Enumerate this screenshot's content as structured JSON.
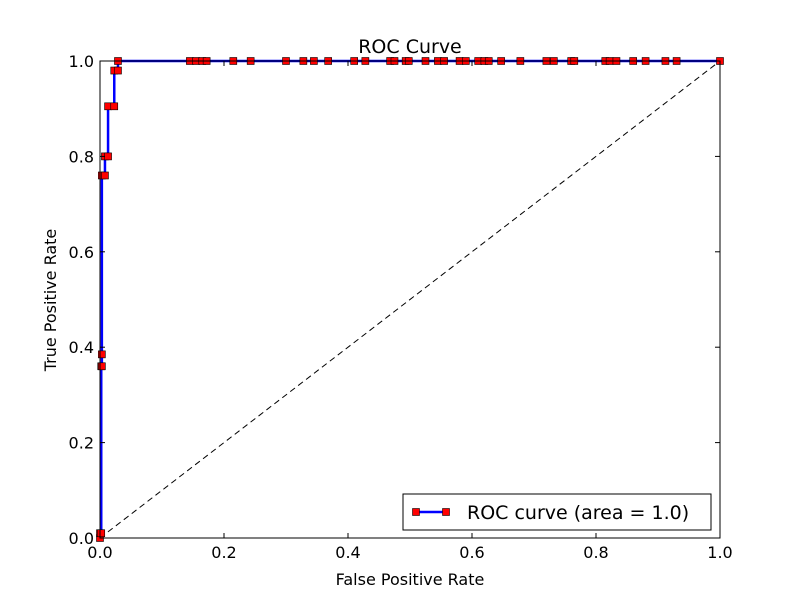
{
  "chart_data": {
    "type": "line",
    "title": "ROC Curve",
    "xlabel": "False Positive Rate",
    "ylabel": "True Positive Rate",
    "xlim": [
      0.0,
      1.0
    ],
    "ylim": [
      0.0,
      1.0
    ],
    "x_ticks": [
      "0.0",
      "0.2",
      "0.4",
      "0.6",
      "0.8",
      "1.0"
    ],
    "y_ticks": [
      "0.0",
      "0.2",
      "0.4",
      "0.6",
      "0.8",
      "1.0"
    ],
    "grid": false,
    "legend_position": "lower-right",
    "series": [
      {
        "name": "ROC curve (area = 1.0)",
        "color": "#0000ff",
        "marker_color": "#ff0000",
        "marker": "square",
        "points": [
          [
            0.0,
            0.0
          ],
          [
            0.0,
            0.01
          ],
          [
            0.002,
            0.01
          ],
          [
            0.002,
            0.36
          ],
          [
            0.003,
            0.36
          ],
          [
            0.003,
            0.385
          ],
          [
            0.003,
            0.76
          ],
          [
            0.008,
            0.76
          ],
          [
            0.008,
            0.8
          ],
          [
            0.013,
            0.8
          ],
          [
            0.013,
            0.905
          ],
          [
            0.023,
            0.905
          ],
          [
            0.023,
            0.98
          ],
          [
            0.029,
            0.98
          ],
          [
            0.029,
            1.0
          ],
          [
            0.145,
            1.0
          ],
          [
            0.155,
            1.0
          ],
          [
            0.165,
            1.0
          ],
          [
            0.172,
            1.0
          ],
          [
            0.215,
            1.0
          ],
          [
            0.243,
            1.0
          ],
          [
            0.3,
            1.0
          ],
          [
            0.328,
            1.0
          ],
          [
            0.345,
            1.0
          ],
          [
            0.368,
            1.0
          ],
          [
            0.41,
            1.0
          ],
          [
            0.428,
            1.0
          ],
          [
            0.468,
            1.0
          ],
          [
            0.475,
            1.0
          ],
          [
            0.493,
            1.0
          ],
          [
            0.498,
            1.0
          ],
          [
            0.525,
            1.0
          ],
          [
            0.545,
            1.0
          ],
          [
            0.555,
            1.0
          ],
          [
            0.58,
            1.0
          ],
          [
            0.59,
            1.0
          ],
          [
            0.61,
            1.0
          ],
          [
            0.62,
            1.0
          ],
          [
            0.627,
            1.0
          ],
          [
            0.647,
            1.0
          ],
          [
            0.678,
            1.0
          ],
          [
            0.72,
            1.0
          ],
          [
            0.732,
            1.0
          ],
          [
            0.76,
            1.0
          ],
          [
            0.765,
            1.0
          ],
          [
            0.815,
            1.0
          ],
          [
            0.822,
            1.0
          ],
          [
            0.833,
            1.0
          ],
          [
            0.86,
            1.0
          ],
          [
            0.88,
            1.0
          ],
          [
            0.912,
            1.0
          ],
          [
            0.93,
            1.0
          ],
          [
            1.0,
            1.0
          ]
        ]
      }
    ],
    "reference_line": {
      "style": "dashed",
      "color": "#000000",
      "points": [
        [
          0.0,
          0.0
        ],
        [
          1.0,
          1.0
        ]
      ]
    }
  }
}
